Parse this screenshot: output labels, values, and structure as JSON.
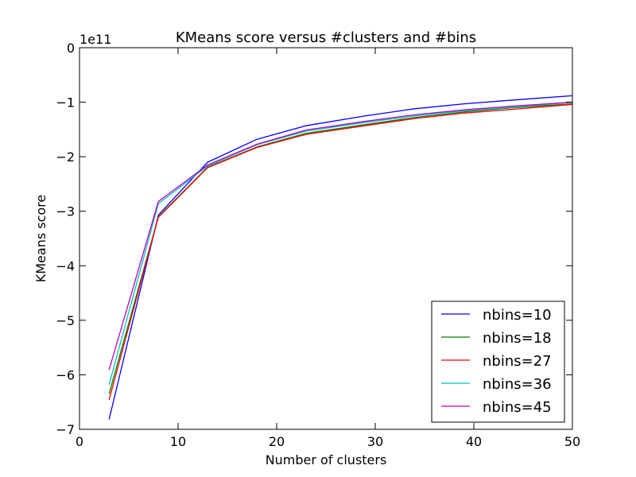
{
  "chart_data": {
    "type": "line",
    "title": "KMeans score versus #clusters and #bins",
    "xlabel": "Number of clusters",
    "ylabel": "KMeans score",
    "offset_label": "1e11",
    "xlim": [
      0,
      50
    ],
    "ylim": [
      -7,
      0
    ],
    "xticks": [
      0,
      10,
      20,
      30,
      40,
      50
    ],
    "xtick_labels": [
      "0",
      "10",
      "20",
      "30",
      "40",
      "50"
    ],
    "yticks": [
      0,
      -1,
      -2,
      -3,
      -4,
      -5,
      -6,
      -7
    ],
    "ytick_labels": [
      "0",
      "−1",
      "−2",
      "−3",
      "−4",
      "−5",
      "−6",
      "−7"
    ],
    "grid": false,
    "legend_position": "lower-right",
    "x": [
      3,
      8,
      13,
      18,
      23,
      29,
      34,
      39,
      44,
      50
    ],
    "series": [
      {
        "name": "nbins=10",
        "color": "#0000ff",
        "values": [
          -6.82,
          -3.07,
          -2.1,
          -1.68,
          -1.43,
          -1.25,
          -1.12,
          -1.03,
          -0.96,
          -0.88
        ]
      },
      {
        "name": "nbins=18",
        "color": "#008000",
        "values": [
          -6.35,
          -3.1,
          -2.19,
          -1.82,
          -1.57,
          -1.41,
          -1.28,
          -1.18,
          -1.1,
          -1.03
        ]
      },
      {
        "name": "nbins=27",
        "color": "#ff0000",
        "values": [
          -6.46,
          -3.11,
          -2.2,
          -1.83,
          -1.59,
          -1.43,
          -1.3,
          -1.2,
          -1.13,
          -1.04
        ]
      },
      {
        "name": "nbins=36",
        "color": "#00bfbf",
        "values": [
          -6.18,
          -2.86,
          -2.17,
          -1.78,
          -1.53,
          -1.37,
          -1.25,
          -1.16,
          -1.09,
          -1.0
        ]
      },
      {
        "name": "nbins=45",
        "color": "#bf00bf",
        "values": [
          -5.91,
          -2.82,
          -2.15,
          -1.77,
          -1.51,
          -1.35,
          -1.23,
          -1.14,
          -1.07,
          -1.0
        ]
      }
    ]
  }
}
